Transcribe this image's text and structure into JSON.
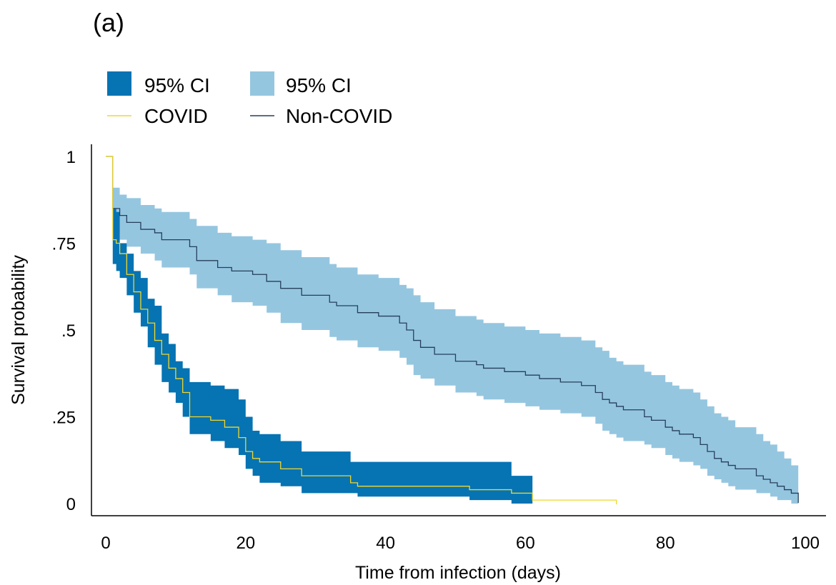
{
  "panel_label": "(a)",
  "colors": {
    "covid_ci": "#0673B3",
    "noncovid_ci": "#95C6E0",
    "covid_line": "#F0D72A",
    "noncovid_line": "#253F5C",
    "axis": "#000000"
  },
  "legend": {
    "covid_ci_label": "95% CI",
    "noncovid_ci_label": "95% CI",
    "covid_label": "COVID",
    "noncovid_label": "Non-COVID"
  },
  "chart_data": {
    "type": "line",
    "subtype": "kaplan-meier step survival curves with 95% confidence bands",
    "title": "",
    "xlabel": "Time from infection (days)",
    "ylabel": "Survival probability",
    "xlim": [
      0,
      100
    ],
    "ylim": [
      0,
      1
    ],
    "xticks": [
      0,
      20,
      40,
      60,
      80,
      100
    ],
    "xtick_labels": [
      "0",
      "20",
      "40",
      "60",
      "80",
      "100"
    ],
    "yticks": [
      0,
      0.25,
      0.5,
      0.75,
      1
    ],
    "ytick_labels": [
      "0",
      ".25",
      ".5",
      ".75",
      "1"
    ],
    "grid": false,
    "legend_position": "top-left, above plot",
    "series": [
      {
        "name": "COVID",
        "color": "#F0D72A",
        "x": [
          0,
          1,
          1.5,
          2,
          3,
          4,
          5,
          6,
          7,
          8,
          9,
          10,
          11,
          12,
          15,
          17,
          19,
          20,
          21,
          22,
          25,
          28,
          35,
          36,
          52,
          58,
          61,
          73
        ],
        "y": [
          1,
          0.76,
          0.75,
          0.72,
          0.66,
          0.61,
          0.56,
          0.52,
          0.47,
          0.43,
          0.39,
          0.36,
          0.32,
          0.25,
          0.24,
          0.22,
          0.19,
          0.15,
          0.13,
          0.12,
          0.1,
          0.08,
          0.06,
          0.05,
          0.04,
          0.03,
          0.01,
          0.01
        ],
        "ci_upper": [
          1,
          0.85,
          0.84,
          0.75,
          0.72,
          0.67,
          0.65,
          0.59,
          0.57,
          0.49,
          0.46,
          0.41,
          0.39,
          0.35,
          0.34,
          0.33,
          0.3,
          0.25,
          0.21,
          0.2,
          0.18,
          0.15,
          0.12,
          0.12,
          0.12,
          0.08,
          0.08,
          0.08
        ],
        "ci_lower": [
          1,
          0.69,
          0.67,
          0.65,
          0.6,
          0.55,
          0.51,
          0.45,
          0.4,
          0.35,
          0.32,
          0.29,
          0.25,
          0.2,
          0.18,
          0.16,
          0.14,
          0.1,
          0.08,
          0.06,
          0.05,
          0.03,
          0.03,
          0.02,
          0.01,
          0,
          0,
          0
        ],
        "ci_end": 61
      },
      {
        "name": "Non-COVID",
        "color": "#253F5C",
        "x": [
          0,
          1,
          2,
          3,
          5,
          7,
          8,
          12,
          13,
          16,
          18,
          21,
          23,
          25,
          28,
          32,
          33,
          36,
          39,
          42,
          43,
          44,
          45,
          47,
          50,
          53,
          54,
          57,
          60,
          62,
          65,
          68,
          70,
          71,
          72,
          73,
          74,
          77,
          78,
          80,
          81,
          82,
          84,
          85,
          86,
          87,
          88,
          89,
          90,
          93,
          94,
          95,
          96,
          97,
          98,
          99
        ],
        "y": [
          1,
          0.85,
          0.83,
          0.81,
          0.79,
          0.78,
          0.76,
          0.74,
          0.7,
          0.68,
          0.67,
          0.66,
          0.64,
          0.62,
          0.6,
          0.58,
          0.57,
          0.55,
          0.54,
          0.52,
          0.5,
          0.47,
          0.45,
          0.43,
          0.41,
          0.4,
          0.39,
          0.38,
          0.37,
          0.36,
          0.35,
          0.34,
          0.32,
          0.3,
          0.29,
          0.28,
          0.27,
          0.25,
          0.24,
          0.22,
          0.21,
          0.2,
          0.19,
          0.17,
          0.15,
          0.13,
          0.12,
          0.11,
          0.1,
          0.08,
          0.07,
          0.06,
          0.05,
          0.04,
          0.03,
          0.01
        ],
        "ci_upper": [
          1,
          0.91,
          0.89,
          0.88,
          0.86,
          0.85,
          0.84,
          0.82,
          0.8,
          0.78,
          0.77,
          0.76,
          0.75,
          0.73,
          0.71,
          0.69,
          0.68,
          0.66,
          0.65,
          0.63,
          0.62,
          0.6,
          0.58,
          0.56,
          0.54,
          0.53,
          0.52,
          0.51,
          0.5,
          0.49,
          0.48,
          0.47,
          0.45,
          0.44,
          0.42,
          0.41,
          0.4,
          0.38,
          0.37,
          0.35,
          0.34,
          0.33,
          0.32,
          0.3,
          0.28,
          0.26,
          0.25,
          0.24,
          0.22,
          0.2,
          0.18,
          0.17,
          0.15,
          0.13,
          0.11,
          0.09
        ],
        "ci_lower": [
          1,
          0.78,
          0.76,
          0.74,
          0.72,
          0.7,
          0.68,
          0.66,
          0.62,
          0.6,
          0.58,
          0.57,
          0.55,
          0.52,
          0.5,
          0.48,
          0.47,
          0.45,
          0.44,
          0.42,
          0.4,
          0.37,
          0.36,
          0.34,
          0.32,
          0.31,
          0.3,
          0.29,
          0.28,
          0.27,
          0.26,
          0.25,
          0.23,
          0.21,
          0.2,
          0.19,
          0.18,
          0.17,
          0.16,
          0.14,
          0.13,
          0.12,
          0.11,
          0.1,
          0.08,
          0.07,
          0.06,
          0.05,
          0.04,
          0.03,
          0.03,
          0.02,
          0.01,
          0.01,
          0,
          0
        ],
        "ci_end": 99
      }
    ]
  }
}
